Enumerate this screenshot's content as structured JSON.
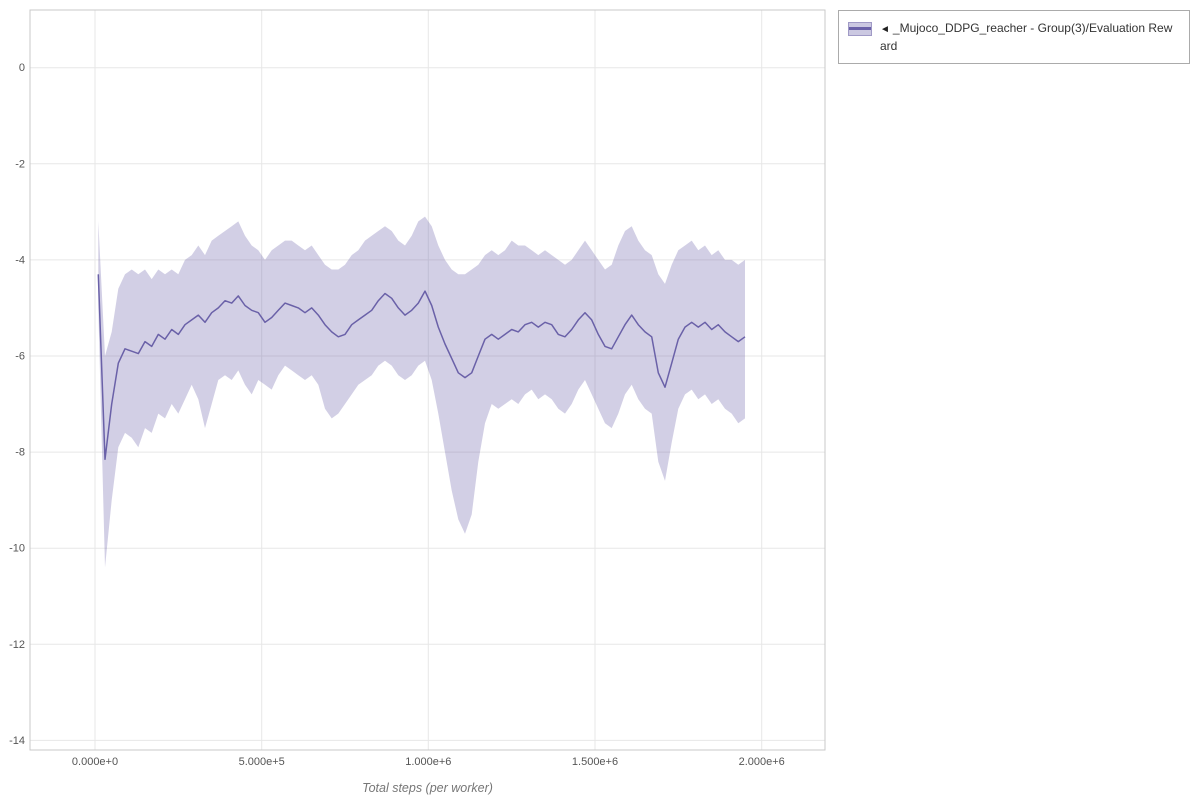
{
  "legend": {
    "collapse_icon": "◄",
    "label": "_Mujoco_DDPG_reacher - Group(3)/Evaluation Reward"
  },
  "chart_data": {
    "type": "line",
    "title": "",
    "xlabel": "Total steps (per worker)",
    "ylabel": "",
    "xlim": [
      -195000,
      2190000
    ],
    "ylim": [
      -14.2,
      1.2
    ],
    "grid": true,
    "legend_position": "top-right-outside",
    "x_ticks": [
      {
        "value": 0,
        "label": "0.000e+0"
      },
      {
        "value": 500000,
        "label": "5.000e+5"
      },
      {
        "value": 1000000,
        "label": "1.000e+6"
      },
      {
        "value": 1500000,
        "label": "1.500e+6"
      },
      {
        "value": 2000000,
        "label": "2.000e+6"
      }
    ],
    "y_ticks": [
      0,
      -2,
      -4,
      -6,
      -8,
      -10,
      -12,
      -14
    ],
    "colors": {
      "line": "#6a61a8",
      "band": "#6a61a8",
      "band_opacity": 0.3,
      "grid": "#e7e7e7",
      "border": "#c9c9c9",
      "tick_text": "#555555"
    },
    "series": [
      {
        "name": "_Mujoco_DDPG_reacher - Group(3)/Evaluation Reward",
        "x": [
          10000,
          30000,
          50000,
          70000,
          90000,
          110000,
          130000,
          150000,
          170000,
          190000,
          210000,
          230000,
          250000,
          270000,
          290000,
          310000,
          330000,
          350000,
          370000,
          390000,
          410000,
          430000,
          450000,
          470000,
          490000,
          510000,
          530000,
          550000,
          570000,
          590000,
          610000,
          630000,
          650000,
          670000,
          690000,
          710000,
          730000,
          750000,
          770000,
          790000,
          810000,
          830000,
          850000,
          870000,
          890000,
          910000,
          930000,
          950000,
          970000,
          990000,
          1010000,
          1030000,
          1050000,
          1070000,
          1090000,
          1110000,
          1130000,
          1150000,
          1170000,
          1190000,
          1210000,
          1230000,
          1250000,
          1270000,
          1290000,
          1310000,
          1330000,
          1350000,
          1370000,
          1390000,
          1410000,
          1430000,
          1450000,
          1470000,
          1490000,
          1510000,
          1530000,
          1550000,
          1570000,
          1590000,
          1610000,
          1630000,
          1650000,
          1670000,
          1690000,
          1710000,
          1730000,
          1750000,
          1770000,
          1790000,
          1810000,
          1830000,
          1850000,
          1870000,
          1890000,
          1910000,
          1930000,
          1950000
        ],
        "mean": [
          -4.3,
          -8.15,
          -7.0,
          -6.15,
          -5.85,
          -5.9,
          -5.95,
          -5.7,
          -5.8,
          -5.55,
          -5.65,
          -5.45,
          -5.55,
          -5.35,
          -5.25,
          -5.15,
          -5.3,
          -5.1,
          -5.0,
          -4.85,
          -4.9,
          -4.75,
          -4.95,
          -5.05,
          -5.1,
          -5.3,
          -5.2,
          -5.05,
          -4.9,
          -4.95,
          -5.0,
          -5.1,
          -5.0,
          -5.15,
          -5.35,
          -5.5,
          -5.6,
          -5.55,
          -5.35,
          -5.25,
          -5.15,
          -5.05,
          -4.85,
          -4.7,
          -4.8,
          -5.0,
          -5.15,
          -5.05,
          -4.9,
          -4.65,
          -4.95,
          -5.4,
          -5.75,
          -6.05,
          -6.35,
          -6.45,
          -6.35,
          -6.0,
          -5.65,
          -5.55,
          -5.65,
          -5.55,
          -5.45,
          -5.5,
          -5.35,
          -5.3,
          -5.4,
          -5.3,
          -5.35,
          -5.55,
          -5.6,
          -5.45,
          -5.25,
          -5.1,
          -5.25,
          -5.55,
          -5.8,
          -5.85,
          -5.6,
          -5.35,
          -5.15,
          -5.35,
          -5.5,
          -5.6,
          -6.35,
          -6.65,
          -6.15,
          -5.65,
          -5.4,
          -5.3,
          -5.4,
          -5.3,
          -5.45,
          -5.35,
          -5.5,
          -5.6,
          -5.7,
          -5.6
        ],
        "upper": [
          -3.2,
          -6.0,
          -5.5,
          -4.6,
          -4.3,
          -4.2,
          -4.3,
          -4.2,
          -4.4,
          -4.2,
          -4.3,
          -4.2,
          -4.3,
          -4.0,
          -3.9,
          -3.7,
          -3.9,
          -3.6,
          -3.5,
          -3.4,
          -3.3,
          -3.2,
          -3.5,
          -3.7,
          -3.8,
          -4.0,
          -3.8,
          -3.7,
          -3.6,
          -3.6,
          -3.7,
          -3.8,
          -3.7,
          -3.9,
          -4.1,
          -4.2,
          -4.2,
          -4.1,
          -3.9,
          -3.8,
          -3.6,
          -3.5,
          -3.4,
          -3.3,
          -3.4,
          -3.6,
          -3.7,
          -3.5,
          -3.2,
          -3.1,
          -3.3,
          -3.7,
          -4.0,
          -4.2,
          -4.3,
          -4.3,
          -4.2,
          -4.1,
          -3.9,
          -3.8,
          -3.9,
          -3.8,
          -3.6,
          -3.7,
          -3.7,
          -3.8,
          -3.9,
          -3.8,
          -3.9,
          -4.0,
          -4.1,
          -4.0,
          -3.8,
          -3.6,
          -3.8,
          -4.0,
          -4.2,
          -4.1,
          -3.7,
          -3.4,
          -3.3,
          -3.6,
          -3.8,
          -3.9,
          -4.3,
          -4.5,
          -4.1,
          -3.8,
          -3.7,
          -3.6,
          -3.8,
          -3.7,
          -3.9,
          -3.8,
          -4.0,
          -4.0,
          -4.1,
          -4.0
        ],
        "lower": [
          -5.0,
          -10.4,
          -9.0,
          -7.9,
          -7.6,
          -7.7,
          -7.9,
          -7.5,
          -7.6,
          -7.2,
          -7.3,
          -7.0,
          -7.2,
          -6.9,
          -6.6,
          -6.9,
          -7.5,
          -7.0,
          -6.5,
          -6.4,
          -6.5,
          -6.3,
          -6.6,
          -6.8,
          -6.5,
          -6.6,
          -6.7,
          -6.4,
          -6.2,
          -6.3,
          -6.4,
          -6.5,
          -6.4,
          -6.6,
          -7.1,
          -7.3,
          -7.2,
          -7.0,
          -6.8,
          -6.6,
          -6.5,
          -6.4,
          -6.2,
          -6.1,
          -6.2,
          -6.4,
          -6.5,
          -6.4,
          -6.2,
          -6.1,
          -6.5,
          -7.2,
          -8.0,
          -8.8,
          -9.4,
          -9.7,
          -9.3,
          -8.2,
          -7.4,
          -7.0,
          -7.1,
          -7.0,
          -6.9,
          -7.0,
          -6.8,
          -6.7,
          -6.9,
          -6.8,
          -6.9,
          -7.1,
          -7.2,
          -7.0,
          -6.7,
          -6.5,
          -6.8,
          -7.1,
          -7.4,
          -7.5,
          -7.2,
          -6.8,
          -6.6,
          -6.9,
          -7.1,
          -7.2,
          -8.2,
          -8.6,
          -7.8,
          -7.1,
          -6.8,
          -6.7,
          -6.9,
          -6.8,
          -7.0,
          -6.9,
          -7.1,
          -7.2,
          -7.4,
          -7.3
        ]
      }
    ]
  }
}
